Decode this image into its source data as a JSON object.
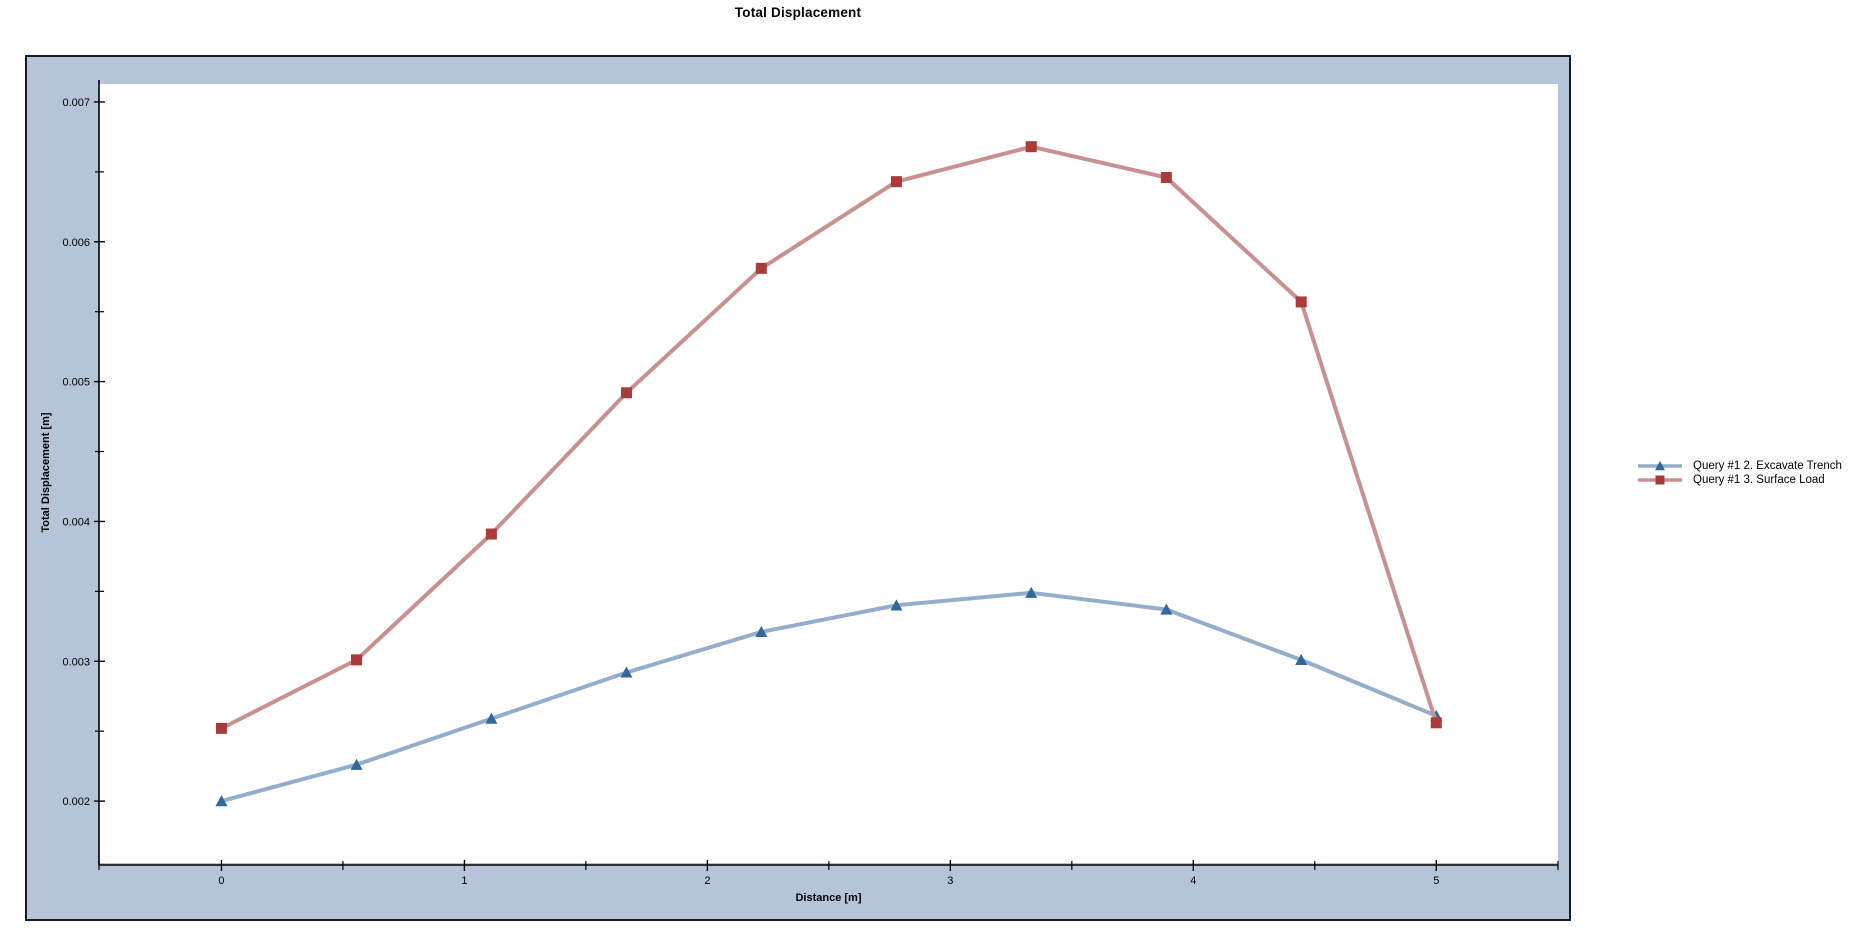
{
  "page_title": "Total Displacement",
  "panel": {
    "background": "#B5C4D9",
    "border_color": "#161B26",
    "plot_background": "#FFFFFF",
    "axis_color": "#000000"
  },
  "chart_data": {
    "type": "line",
    "title": "Total Displacement",
    "xlabel": "Distance [m]",
    "ylabel": "Total Displacement [m]",
    "x": [
      0,
      0.556,
      1.111,
      1.667,
      2.222,
      2.778,
      3.333,
      3.889,
      4.444,
      5
    ],
    "series": [
      {
        "name": "Query #1 2. Excavate Trench",
        "marker": "triangle",
        "line_color": "#93ADCC",
        "marker_color": "#33689B",
        "values": [
          0.002,
          0.00226,
          0.00259,
          0.00292,
          0.00321,
          0.0034,
          0.00349,
          0.00337,
          0.00301,
          0.00261
        ]
      },
      {
        "name": "Query #1 3. Surface Load",
        "marker": "square",
        "line_color": "#C99090",
        "marker_color": "#A93B3B",
        "values": [
          0.00252,
          0.00301,
          0.00391,
          0.00492,
          0.00581,
          0.00643,
          0.00668,
          0.00646,
          0.00557,
          0.00256
        ]
      }
    ],
    "x_ticks": [
      0,
      1,
      2,
      3,
      4,
      5
    ],
    "x_minor_ticks": [
      0.5,
      1.5,
      2.5,
      3.5,
      4.5
    ],
    "y_ticks": [
      0.002,
      0.003,
      0.004,
      0.005,
      0.006,
      0.007
    ],
    "y_minor_ticks": [
      0.0025,
      0.0035,
      0.0045,
      0.0055,
      0.0065
    ],
    "xlim": [
      -0.504,
      5.501
    ],
    "ylim": [
      0.001543,
      0.007157
    ],
    "grid": false,
    "legend_position": "right"
  }
}
